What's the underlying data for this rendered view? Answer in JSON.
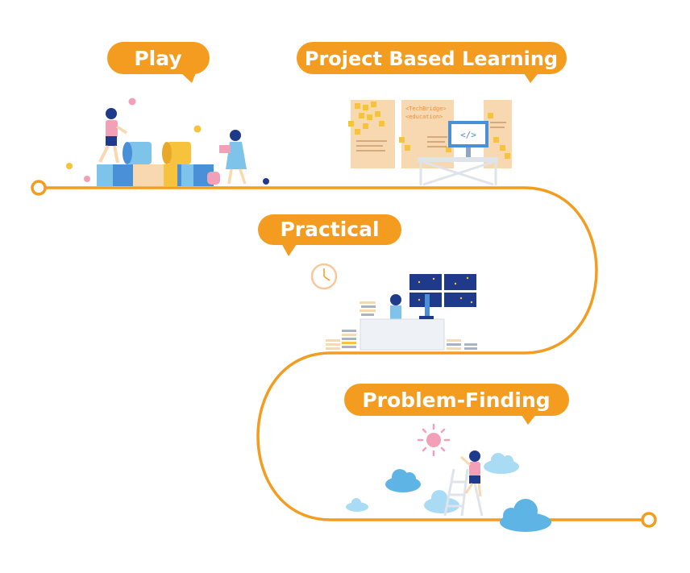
{
  "stages": [
    {
      "id": "play",
      "label": "Play"
    },
    {
      "id": "pbl",
      "label": "Project Based Learning"
    },
    {
      "id": "practical",
      "label": "Practical"
    },
    {
      "id": "problem-finding",
      "label": "Problem-Finding"
    }
  ],
  "board_text": {
    "line1": "<TechBridge>",
    "line2": "<education>"
  },
  "colors": {
    "path": "#f39c1f",
    "bubble": "#f39c1f",
    "blue": "#4a90d9",
    "navy": "#1f3a8a",
    "light_blue": "#7ec3ea",
    "peach": "#f8d8b0",
    "yellow": "#f7c23c",
    "pink": "#f2a0b8"
  }
}
